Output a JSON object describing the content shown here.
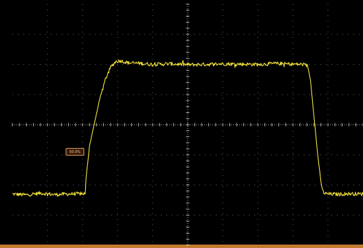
{
  "chart_data": {
    "type": "line",
    "title": "",
    "xlabel": "",
    "ylabel": "",
    "x_divisions": 10,
    "y_divisions": 8,
    "xlim": [
      0,
      10
    ],
    "ylim": [
      -4,
      4
    ],
    "grid": true,
    "series": [
      {
        "color": "#f5e63c",
        "x": [
          0.0,
          0.4,
          0.8,
          1.2,
          1.6,
          2.0,
          2.08,
          2.1,
          2.2,
          2.35,
          2.5,
          2.65,
          2.8,
          2.95,
          3.1,
          3.3,
          3.6,
          4.0,
          4.5,
          5.0,
          5.5,
          6.0,
          6.5,
          7.0,
          7.5,
          8.0,
          8.3,
          8.42,
          8.5,
          8.6,
          8.7,
          8.8,
          8.85,
          8.9,
          9.0,
          9.3,
          9.6,
          10.0
        ],
        "y": [
          -2.3,
          -2.33,
          -2.27,
          -2.32,
          -2.3,
          -2.29,
          -2.28,
          -1.8,
          -0.7,
          0.1,
          0.9,
          1.5,
          1.9,
          2.1,
          2.12,
          2.05,
          2.04,
          2.0,
          2.02,
          1.99,
          2.0,
          2.02,
          2.01,
          2.0,
          2.03,
          2.01,
          2.0,
          1.95,
          1.5,
          0.3,
          -0.9,
          -1.9,
          -2.2,
          -2.28,
          -2.3,
          -2.31,
          -2.29,
          -2.3
        ]
      }
    ],
    "annotations": [
      {
        "text": "50.0%",
        "x": 1.98,
        "y": -0.9
      }
    ]
  },
  "colors": {
    "background": "#000000",
    "grid": "#7a7a7a",
    "axis": "#d2d2d2",
    "trace": "#f5e63c",
    "marker_bg": "#3a1a05",
    "marker_border": "#d9a06a",
    "marker_text": "#f0d2b4",
    "border": "#c27a2e"
  }
}
